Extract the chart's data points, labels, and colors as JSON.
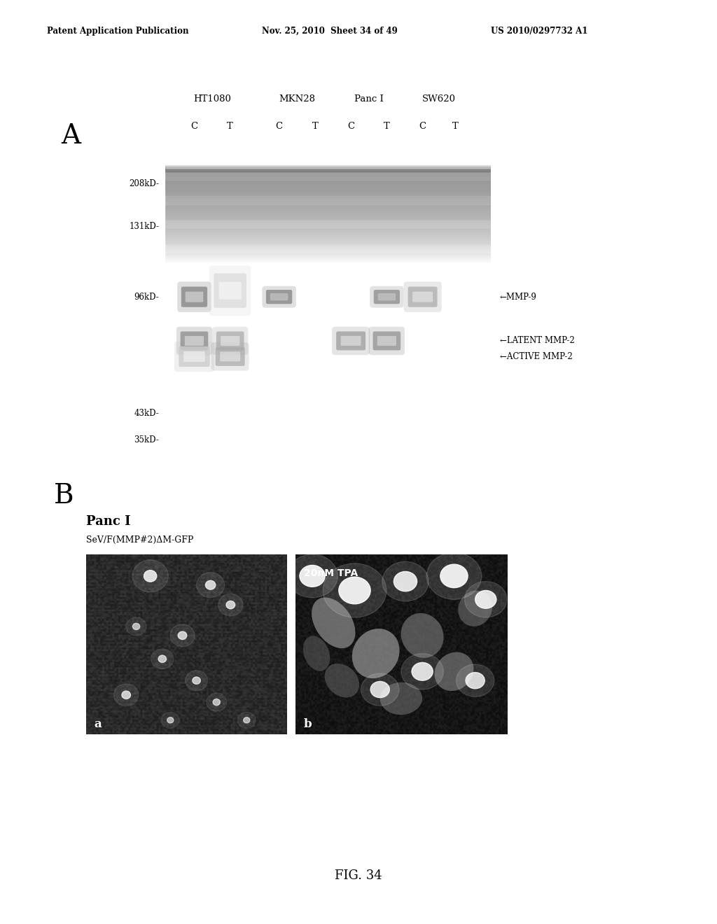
{
  "header_left": "Patent Application Publication",
  "header_mid": "Nov. 25, 2010  Sheet 34 of 49",
  "header_right": "US 2010/0297732 A1",
  "panel_A_label": "A",
  "panel_B_label": "B",
  "gel_column_groups": [
    "HT1080",
    "MKN28",
    "Panc I",
    "SW620"
  ],
  "gel_ct_labels": [
    "C",
    "T",
    "C",
    "T",
    "C",
    "T",
    "C",
    "T"
  ],
  "mw_markers": [
    "208kD-",
    "131kD-",
    "96kD-",
    "43kD-",
    "35kD-"
  ],
  "right_labels": [
    "←MMP-9",
    "←LATENT MMP-2",
    "←ACTIVE MMP-2"
  ],
  "fig_label": "FIG. 34",
  "panc_label": "Panc I",
  "sev_label": "SeV/F(MMP#2)ΔM-GFP",
  "img_a_label": "a",
  "img_b_label": "b",
  "img_b_overlay": "20nM TPA",
  "bg_color": "#ffffff",
  "gel_bg": "#050505"
}
